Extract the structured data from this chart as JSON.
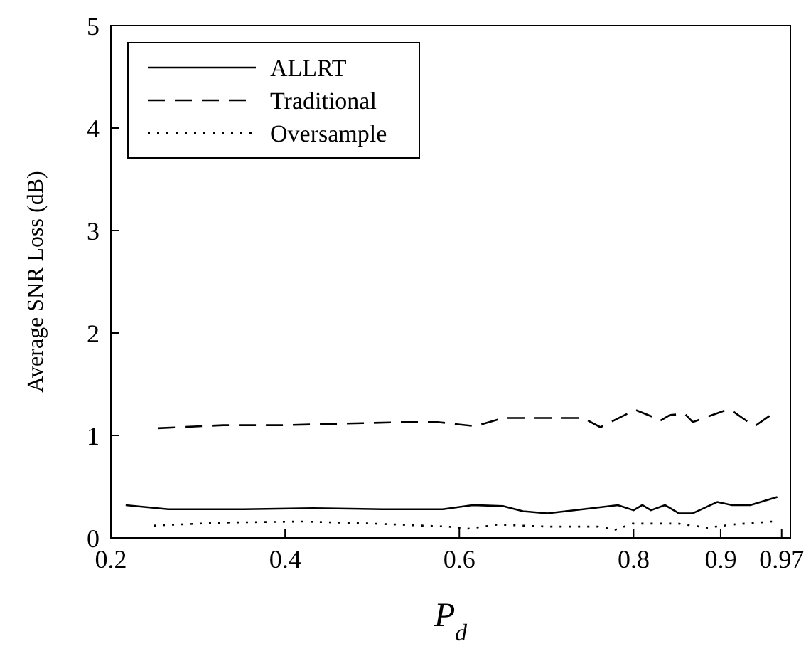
{
  "chart_data": {
    "type": "line",
    "xlabel": "P$_{d}$",
    "ylabel": "Average SNR Loss (dB)",
    "xlim": [
      0.2,
      0.98
    ],
    "xticks": [
      0.2,
      0.4,
      0.6,
      0.8,
      0.9,
      0.97
    ],
    "ylim": [
      0,
      5
    ],
    "yticks": [
      0,
      1,
      2,
      3,
      4,
      5
    ],
    "grid": false,
    "legend": "top left",
    "marker": "none",
    "series": [
      {
        "name": "ALLRT",
        "color": "#000000",
        "line_style": "solid",
        "x": [
          0.217,
          0.266,
          0.306,
          0.352,
          0.432,
          0.512,
          0.581,
          0.615,
          0.65,
          0.673,
          0.701,
          0.742,
          0.782,
          0.8,
          0.81,
          0.82,
          0.836,
          0.852,
          0.868,
          0.896,
          0.913,
          0.934,
          0.965
        ],
        "values": [
          0.32,
          0.28,
          0.28,
          0.28,
          0.29,
          0.28,
          0.28,
          0.32,
          0.31,
          0.26,
          0.24,
          0.28,
          0.32,
          0.27,
          0.32,
          0.27,
          0.32,
          0.24,
          0.24,
          0.35,
          0.32,
          0.32,
          0.4
        ]
      },
      {
        "name": "Traditional",
        "color": "#000000",
        "line_style": "dashed",
        "x": [
          0.254,
          0.329,
          0.398,
          0.444,
          0.535,
          0.575,
          0.618,
          0.65,
          0.742,
          0.762,
          0.802,
          0.825,
          0.83,
          0.842,
          0.859,
          0.868,
          0.91,
          0.925,
          0.939,
          0.956
        ],
        "values": [
          1.07,
          1.1,
          1.1,
          1.11,
          1.13,
          1.13,
          1.09,
          1.17,
          1.17,
          1.08,
          1.25,
          1.17,
          1.14,
          1.2,
          1.21,
          1.13,
          1.26,
          1.17,
          1.09,
          1.19
        ]
      },
      {
        "name": "Oversample",
        "color": "#000000",
        "line_style": "dotted",
        "x": [
          0.249,
          0.329,
          0.421,
          0.501,
          0.587,
          0.61,
          0.644,
          0.701,
          0.759,
          0.779,
          0.799,
          0.851,
          0.885,
          0.913,
          0.959
        ],
        "values": [
          0.12,
          0.15,
          0.16,
          0.14,
          0.11,
          0.09,
          0.13,
          0.11,
          0.11,
          0.08,
          0.14,
          0.14,
          0.1,
          0.13,
          0.16
        ]
      }
    ]
  }
}
